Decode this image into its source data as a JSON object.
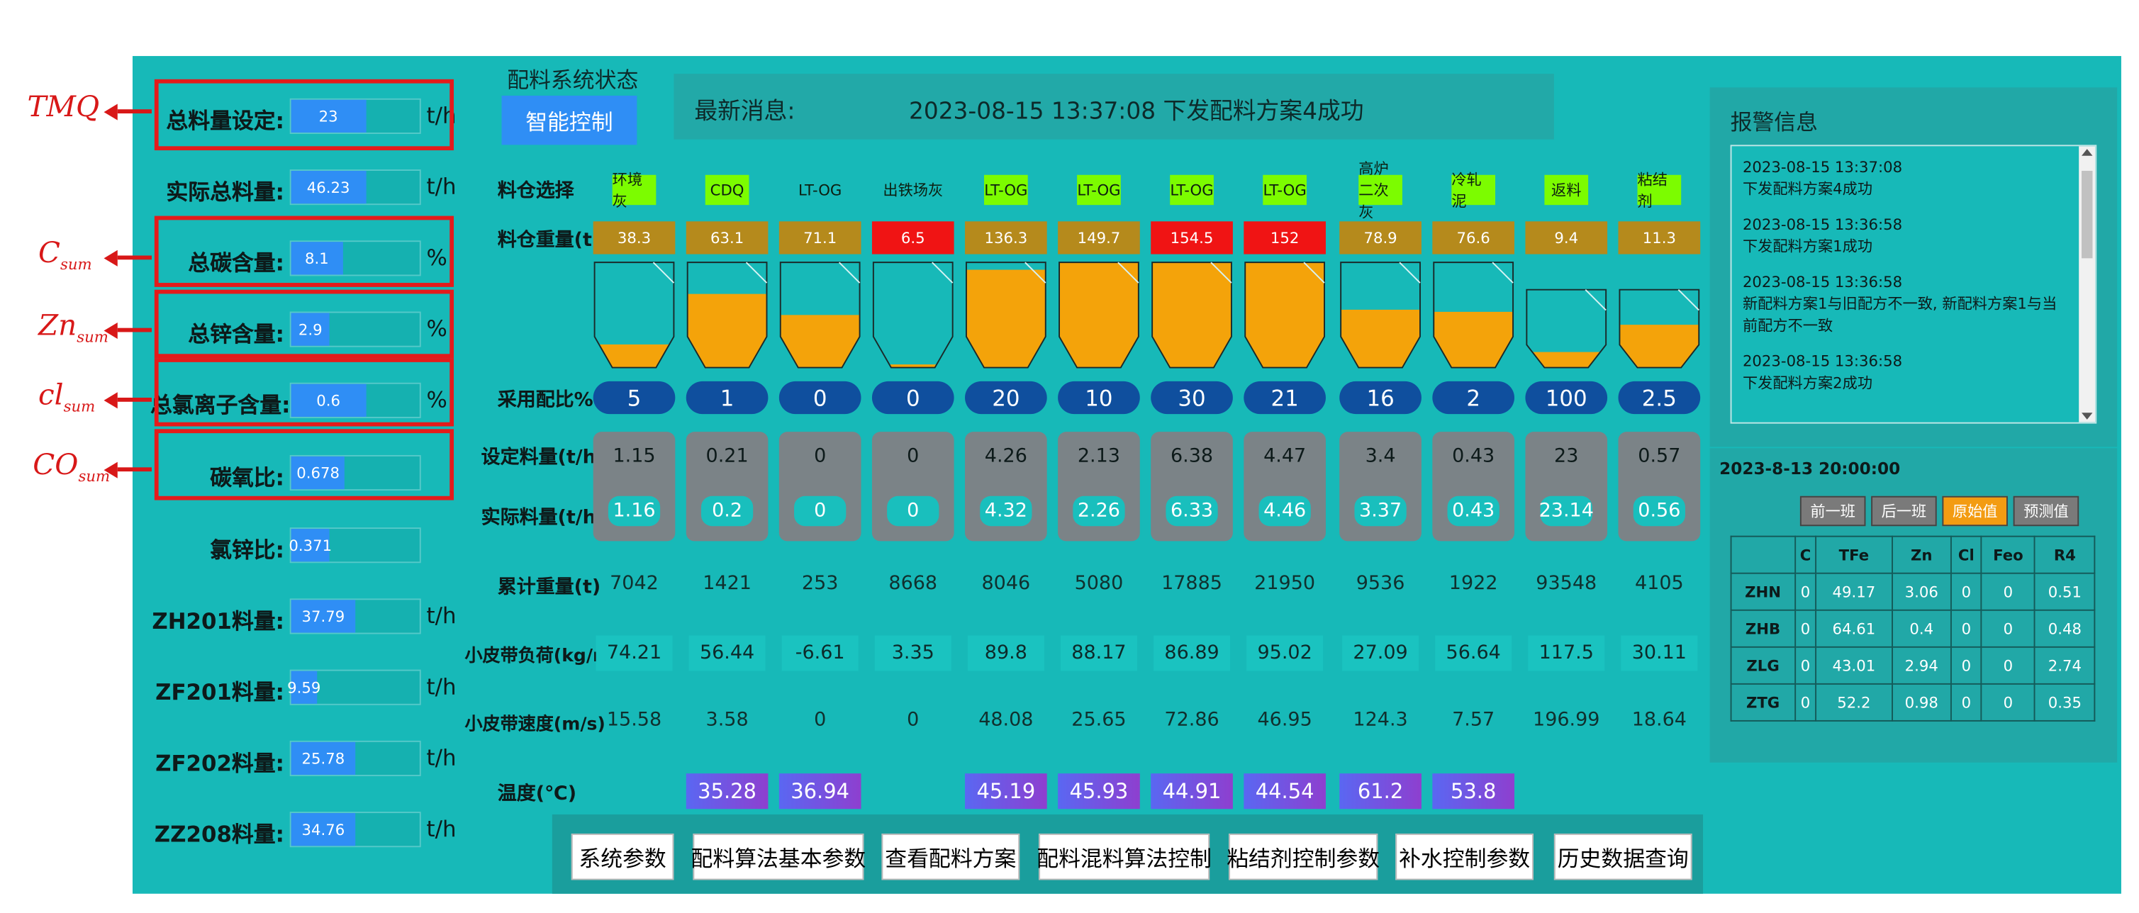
{
  "left": {
    "rows": [
      {
        "label": "总料量设定:",
        "value": "23",
        "fill": 0.58,
        "unit": "t/h"
      },
      {
        "label": "实际总料量:",
        "value": "46.23",
        "fill": 0.58,
        "unit": "t/h"
      },
      {
        "label": "总碳含量:",
        "value": "8.1",
        "fill": 0.4,
        "unit": "%"
      },
      {
        "label": "总锌含量:",
        "value": "2.9",
        "fill": 0.3,
        "unit": "%"
      },
      {
        "label": "总氯离子含量:",
        "value": "0.6",
        "fill": 0.58,
        "unit": "%"
      },
      {
        "label": "碳氧比:",
        "value": "0.678",
        "fill": 0.42,
        "unit": ""
      },
      {
        "label": "氯锌比:",
        "value": "0.371",
        "fill": 0.3,
        "unit": ""
      },
      {
        "label": "ZH201料量:",
        "value": "37.79",
        "fill": 0.5,
        "unit": "t/h"
      },
      {
        "label": "ZF201料量:",
        "value": "9.59",
        "fill": 0.2,
        "unit": "t/h"
      },
      {
        "label": "ZF202料量:",
        "value": "25.78",
        "fill": 0.5,
        "unit": "t/h"
      },
      {
        "label": "ZZ208料量:",
        "value": "34.76",
        "fill": 0.5,
        "unit": "t/h"
      }
    ]
  },
  "annotations": [
    {
      "main": "TMQ",
      "sub": ""
    },
    {
      "main": "C",
      "sub": "sum"
    },
    {
      "main": "Zn",
      "sub": "sum"
    },
    {
      "main": "cl",
      "sub": "sum"
    },
    {
      "main": "CO",
      "sub": "sum"
    }
  ],
  "status": {
    "title": "配料系统状态",
    "button": "智能控制",
    "news_label": "最新消息:",
    "news_text": "2023-08-15 13:37:08 下发配料方案4成功"
  },
  "row_labels": {
    "select": "料仓选择",
    "weight": "料仓重量(t)",
    "ratio": "采用配比%",
    "set": "设定料量(t/h)",
    "actual": "实际料量(t/h)",
    "cum": "累计重量(t)",
    "load": "小皮带负荷(kg/m)",
    "speed": "小皮带速度(m/s)",
    "temp": "温度(℃)"
  },
  "bins": [
    {
      "name": "环境灰",
      "name_bg": "#7CFC00",
      "weight": "38.3",
      "wcolor": "#b58a1c",
      "fill": 0.22,
      "ratio": "5",
      "set": "1.15",
      "actual": "1.16",
      "cum": "7042",
      "load": "74.21",
      "speed": "15.58",
      "temp": ""
    },
    {
      "name": "CDQ",
      "name_bg": "#7CFC00",
      "weight": "63.1",
      "wcolor": "#b58a1c",
      "fill": 0.7,
      "ratio": "1",
      "set": "0.21",
      "actual": "0.2",
      "cum": "1421",
      "load": "56.44",
      "speed": "3.58",
      "temp": "35.28"
    },
    {
      "name": "LT-OG",
      "name_bg": "",
      "weight": "71.1",
      "wcolor": "#b58a1c",
      "fill": 0.5,
      "ratio": "0",
      "set": "0",
      "actual": "0",
      "cum": "253",
      "load": "-6.61",
      "speed": "0",
      "temp": "36.94"
    },
    {
      "name": "出铁场灰",
      "name_bg": "",
      "weight": "6.5",
      "wcolor": "#f01414",
      "fill": 0.03,
      "ratio": "0",
      "set": "0",
      "actual": "0",
      "cum": "8668",
      "load": "3.35",
      "speed": "0",
      "temp": ""
    },
    {
      "name": "LT-OG",
      "name_bg": "#7CFC00",
      "weight": "136.3",
      "wcolor": "#b58a1c",
      "fill": 0.93,
      "ratio": "20",
      "set": "4.26",
      "actual": "4.32",
      "cum": "8046",
      "load": "89.8",
      "speed": "48.08",
      "temp": "45.19"
    },
    {
      "name": "LT-OG",
      "name_bg": "#7CFC00",
      "weight": "149.7",
      "wcolor": "#b58a1c",
      "fill": 1.0,
      "ratio": "10",
      "set": "2.13",
      "actual": "2.26",
      "cum": "5080",
      "load": "88.17",
      "speed": "25.65",
      "temp": "45.93"
    },
    {
      "name": "LT-OG",
      "name_bg": "#7CFC00",
      "weight": "154.5",
      "wcolor": "#f01414",
      "fill": 1.0,
      "ratio": "30",
      "set": "6.38",
      "actual": "6.33",
      "cum": "17885",
      "load": "86.89",
      "speed": "72.86",
      "temp": "44.91"
    },
    {
      "name": "LT-OG",
      "name_bg": "#7CFC00",
      "weight": "152",
      "wcolor": "#f01414",
      "fill": 1.0,
      "ratio": "21",
      "set": "4.47",
      "actual": "4.46",
      "cum": "21950",
      "load": "95.02",
      "speed": "46.95",
      "temp": "44.54"
    },
    {
      "name": "高炉二次灰",
      "name_bg": "#7CFC00",
      "weight": "78.9",
      "wcolor": "#b58a1c",
      "fill": 0.55,
      "ratio": "16",
      "set": "3.4",
      "actual": "3.37",
      "cum": "9536",
      "load": "27.09",
      "speed": "124.3",
      "temp": "61.2"
    },
    {
      "name": "冷轧泥",
      "name_bg": "#7CFC00",
      "weight": "76.6",
      "wcolor": "#b58a1c",
      "fill": 0.53,
      "ratio": "2",
      "set": "0.43",
      "actual": "0.43",
      "cum": "1922",
      "load": "56.64",
      "speed": "7.57",
      "temp": "53.8"
    },
    {
      "name": "返料",
      "name_bg": "#7CFC00",
      "weight": "9.4",
      "wcolor": "#b58a1c",
      "fill": 0.2,
      "ratio": "100",
      "set": "23",
      "actual": "23.14",
      "cum": "93548",
      "load": "117.5",
      "speed": "196.99",
      "temp": ""
    },
    {
      "name": "粘结剂",
      "name_bg": "#7CFC00",
      "weight": "11.3",
      "wcolor": "#b58a1c",
      "fill": 0.55,
      "ratio": "2.5",
      "set": "0.57",
      "actual": "0.56",
      "cum": "4105",
      "load": "30.11",
      "speed": "18.64",
      "temp": ""
    }
  ],
  "buttons": [
    "系统参数",
    "配料算法基本参数",
    "查看配料方案",
    "配料混料算法控制",
    "粘结剂控制参数",
    "补水控制参数",
    "历史数据查询"
  ],
  "alarm": {
    "title": "报警信息",
    "messages": [
      {
        "time": "2023-08-15 13:37:08",
        "text": "下发配料方案4成功"
      },
      {
        "time": "2023-08-15 13:36:58",
        "text": "下发配料方案1成功"
      },
      {
        "time": "2023-08-15 13:36:58",
        "text": "新配料方案1与旧配方不一致, 新配料方案1与当前配方不一致"
      },
      {
        "time": "2023-08-15 13:36:58",
        "text": "下发配料方案2成功"
      }
    ]
  },
  "shift": {
    "date": "2023-8-13 20:00:00",
    "tabs": [
      {
        "label": "前一班",
        "color": "#7a7a7a"
      },
      {
        "label": "后一班",
        "color": "#7a7a7a"
      },
      {
        "label": "原始值",
        "color": "#f39c12"
      },
      {
        "label": "预测值",
        "color": "#7a7a7a"
      }
    ],
    "headers": [
      "",
      "C",
      "TFe",
      "Zn",
      "Cl",
      "Feo",
      "R4"
    ],
    "rows": [
      [
        "ZHN",
        "0",
        "49.17",
        "3.06",
        "0",
        "0",
        "0.51"
      ],
      [
        "ZHB",
        "0",
        "64.61",
        "0.4",
        "0",
        "0",
        "0.48"
      ],
      [
        "ZLG",
        "0",
        "43.01",
        "2.94",
        "0",
        "0",
        "2.74"
      ],
      [
        "ZTG",
        "0",
        "52.2",
        "0.98",
        "0",
        "0",
        "0.35"
      ]
    ]
  }
}
